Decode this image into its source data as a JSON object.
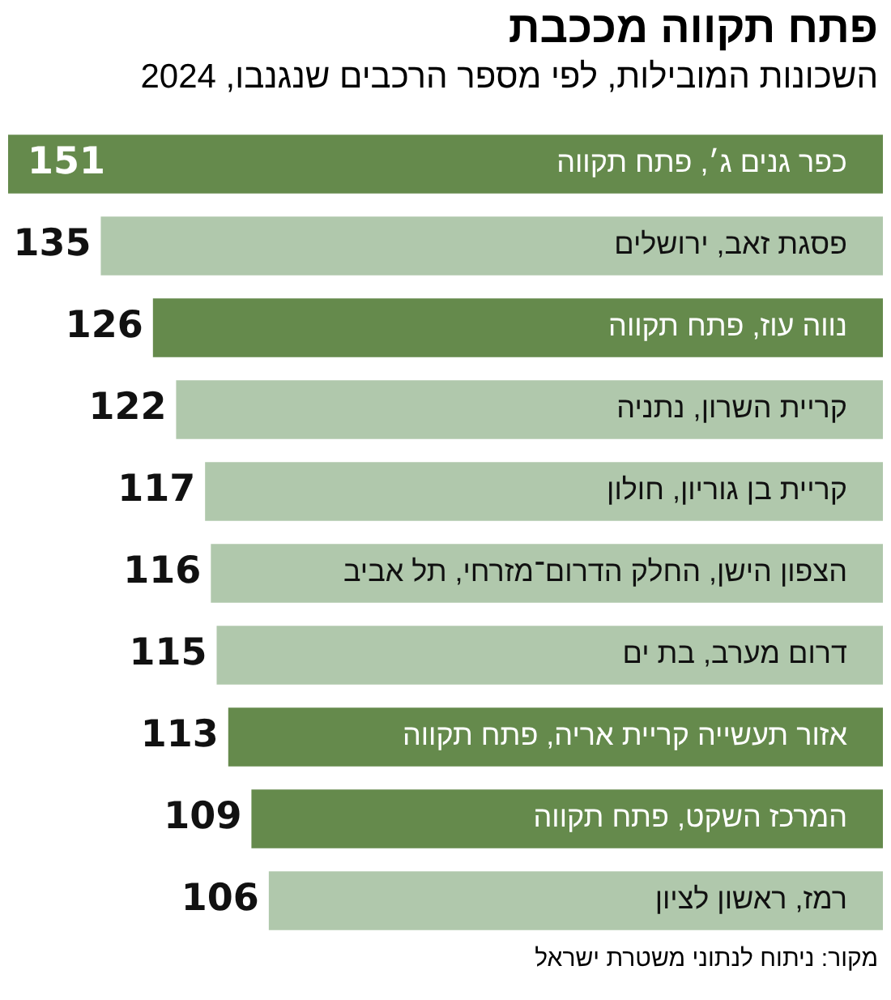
{
  "chart_data": {
    "type": "bar",
    "orientation": "horizontal",
    "title": "פתח תקווה מככבת",
    "subtitle": "השכונות המובילות, לפי מספר הרכבים שנגנבו, 2024",
    "categories": [
      "כפר גנים ג׳, פתח תקווה",
      "פסגת זאב, ירושלים",
      "נווה עוז, פתח תקווה",
      "קריית השרון, נתניה",
      "קריית בן גוריון, חולון",
      "הצפון הישן, החלק הדרום־מזרחי, תל אביב",
      "דרום מערב, בת ים",
      "אזור תעשייה קריית אריה, פתח תקווה",
      "המרכז השקט, פתח תקווה",
      "רמז, ראשון לציון"
    ],
    "values": [
      151,
      135,
      126,
      122,
      117,
      116,
      115,
      113,
      109,
      106
    ],
    "colors": [
      "#658a4c",
      "#b0c8ac",
      "#658a4c",
      "#b0c8ac",
      "#b0c8ac",
      "#b0c8ac",
      "#b0c8ac",
      "#658a4c",
      "#658a4c",
      "#b0c8ac"
    ],
    "data_labels": true,
    "legend": false,
    "annotations": [
      "מקור: ניתוח לנתוני משטרת ישראל"
    ]
  }
}
